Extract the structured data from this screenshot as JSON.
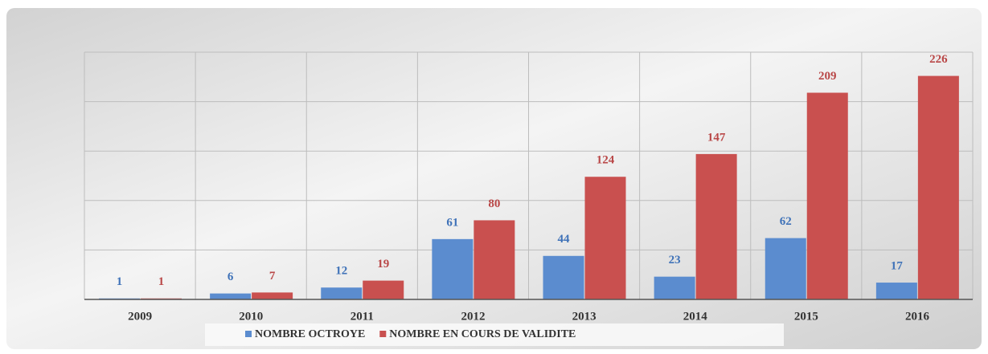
{
  "chart_data": {
    "type": "bar",
    "categories": [
      "2009",
      "2010",
      "2011",
      "2012",
      "2013",
      "2014",
      "2015",
      "2016"
    ],
    "series": [
      {
        "name": "NOMBRE OCTROYE",
        "color": "#5b8ccf",
        "label_color": "#3f72b8",
        "values": [
          1,
          6,
          12,
          61,
          44,
          23,
          62,
          17
        ]
      },
      {
        "name": "NOMBRE EN COURS DE VALIDITE",
        "color": "#c9504f",
        "label_color": "#b94747",
        "values": [
          1,
          7,
          19,
          80,
          124,
          147,
          209,
          226
        ]
      }
    ],
    "ylim": [
      0,
      250
    ],
    "yticks": [
      0,
      50,
      100,
      150,
      200,
      250
    ],
    "grid": true,
    "legend": "bottom"
  }
}
